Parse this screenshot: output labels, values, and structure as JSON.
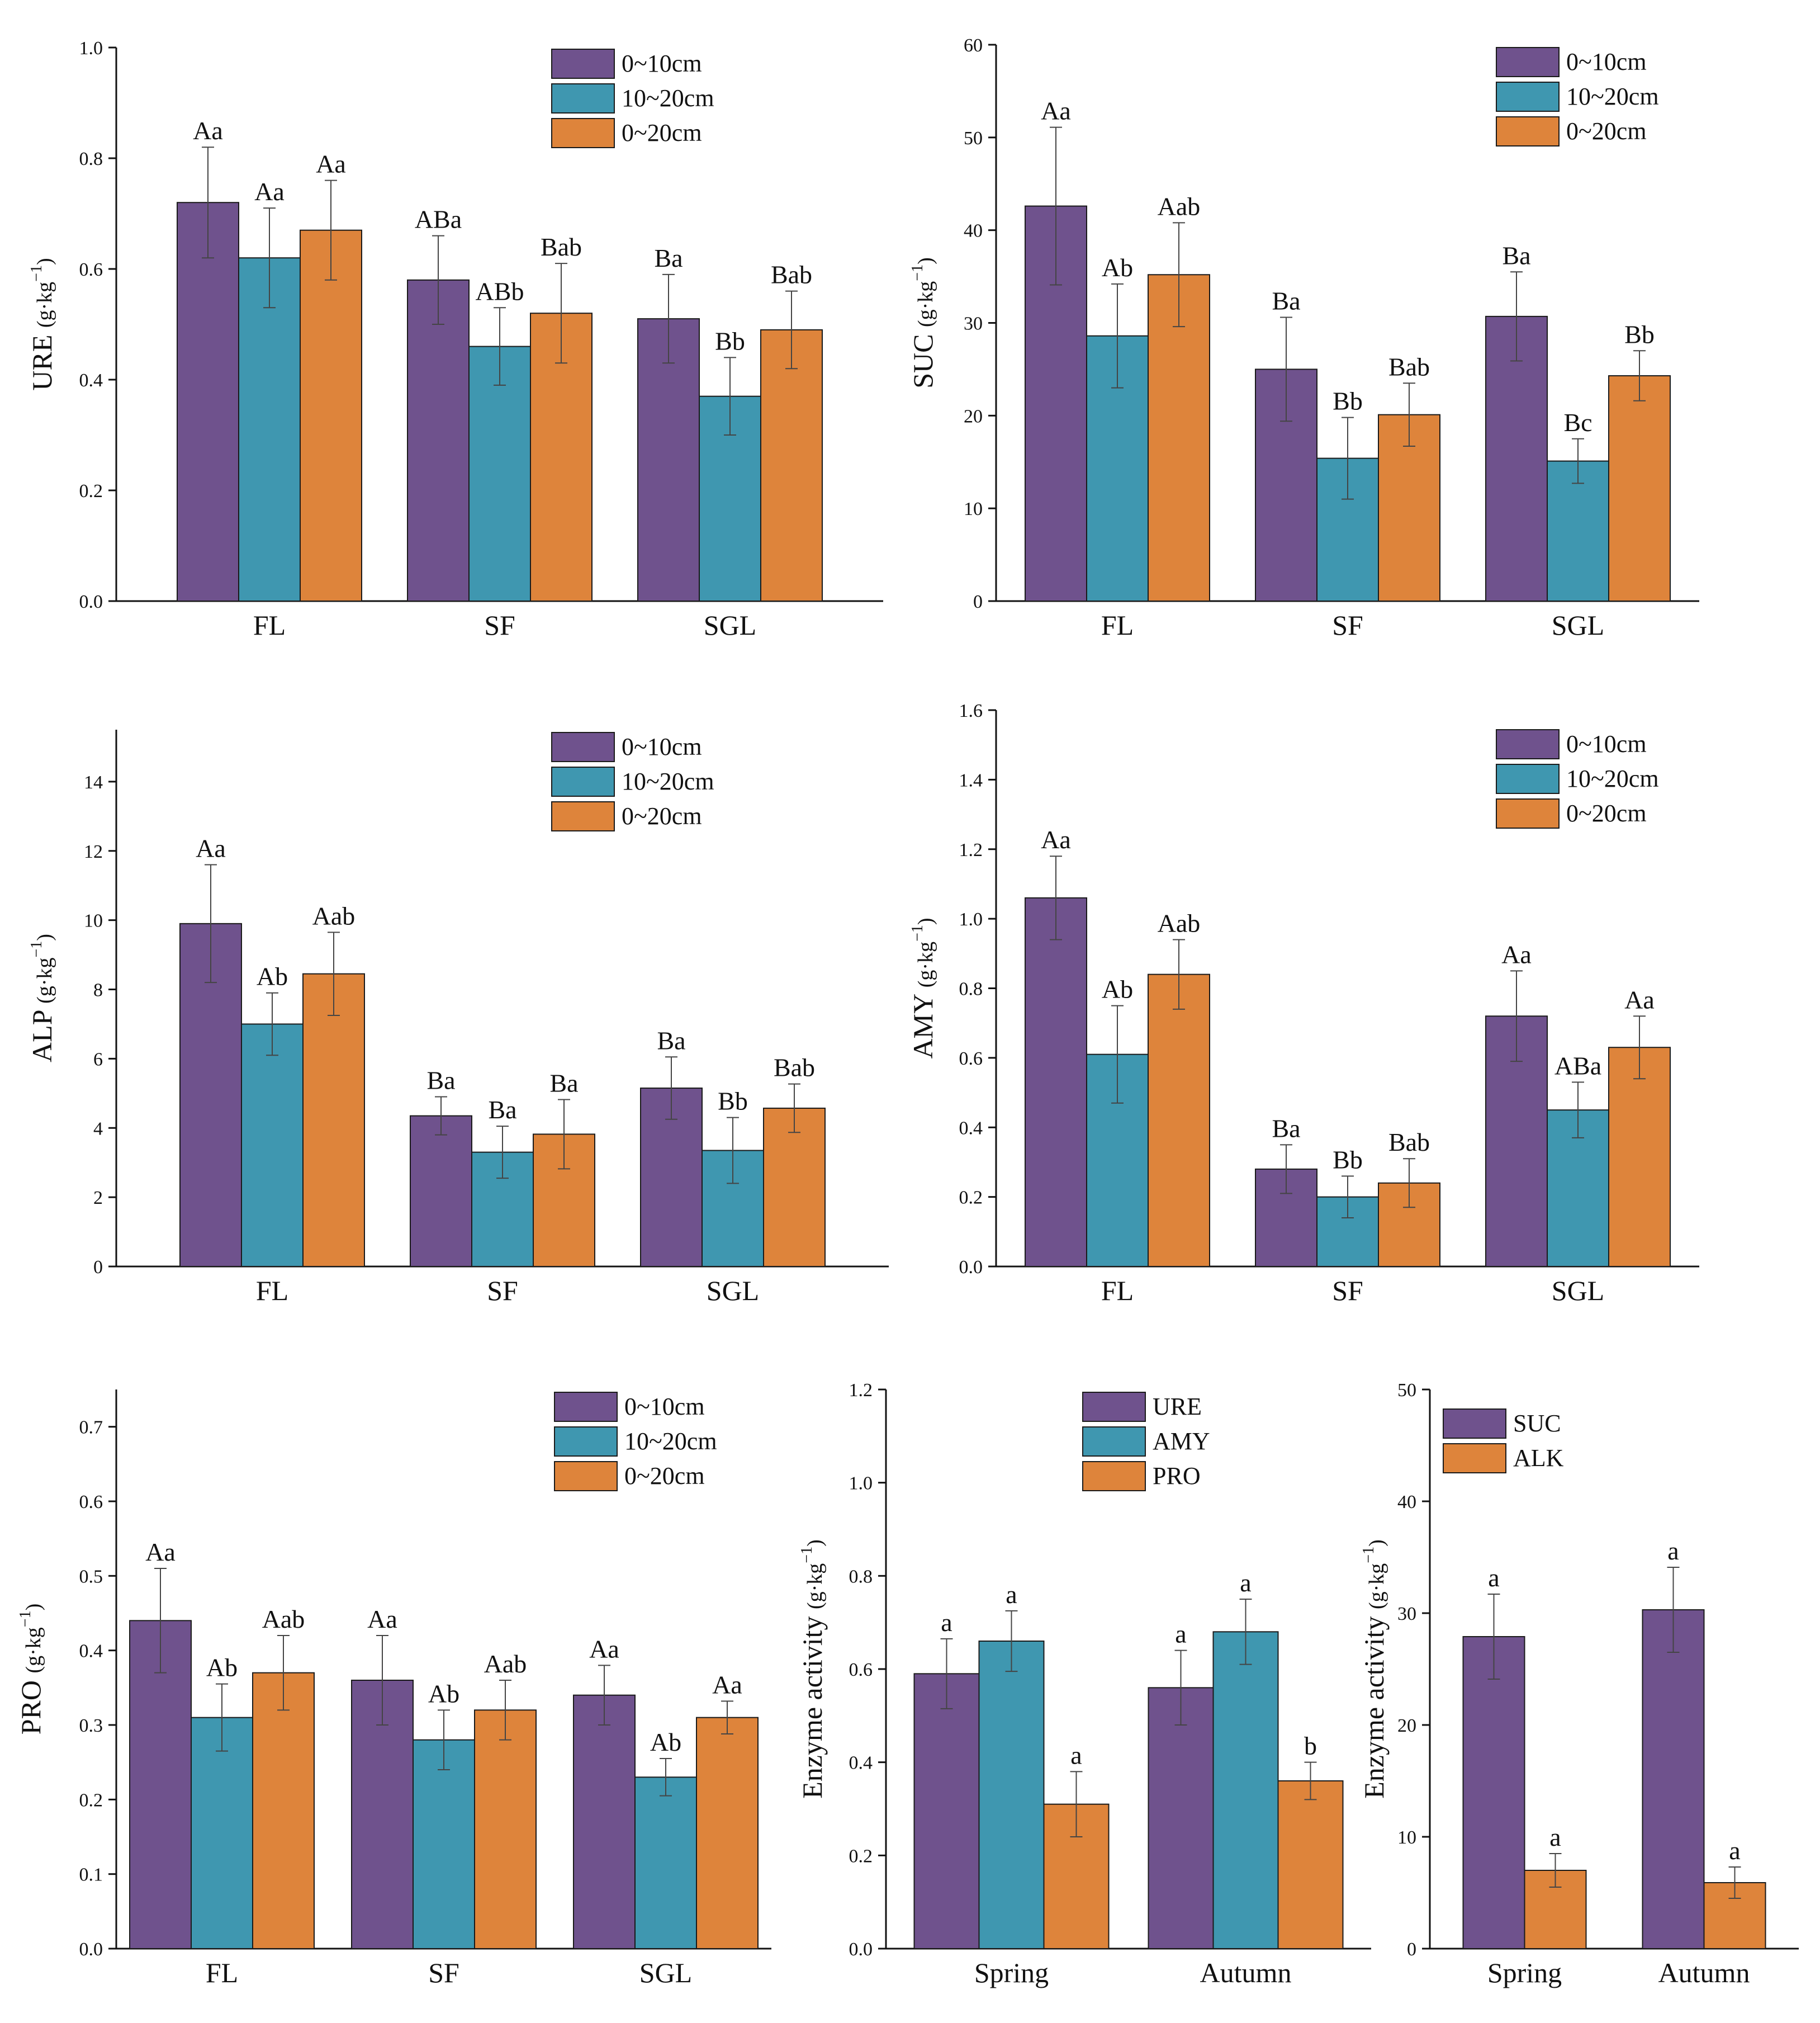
{
  "colors": {
    "purple": "#6f528d",
    "teal": "#3f97b0",
    "orange": "#de843b",
    "axis": "#111111",
    "error": "#444444"
  },
  "chart_data": [
    {
      "id": "ure",
      "type": "bar",
      "ylabel": "URE",
      "unit": "(g·kg",
      "unit_exp": "−1",
      "unit_close": ")",
      "categories": [
        "FL",
        "SF",
        "SGL"
      ],
      "ylim": [
        0,
        1.0
      ],
      "yticks": [
        "0.0",
        "0.2",
        "0.4",
        "0.6",
        "0.8",
        "1.0"
      ],
      "ytick_values": [
        0,
        0.2,
        0.4,
        0.6,
        0.8,
        1.0
      ],
      "legend_position": "top-right",
      "series": [
        {
          "name": "0~10cm",
          "color": "#6f528d",
          "values": [
            0.72,
            0.58,
            0.51
          ],
          "errors": [
            0.1,
            0.08,
            0.08
          ],
          "labels": [
            "Aa",
            "ABa",
            "Ba"
          ]
        },
        {
          "name": "10~20cm",
          "color": "#3f97b0",
          "values": [
            0.62,
            0.46,
            0.37
          ],
          "errors": [
            0.09,
            0.07,
            0.07
          ],
          "labels": [
            "Aa",
            "ABb",
            "Bb"
          ]
        },
        {
          "name": "0~20cm",
          "color": "#de843b",
          "values": [
            0.67,
            0.52,
            0.49
          ],
          "errors": [
            0.09,
            0.09,
            0.07
          ],
          "labels": [
            "Aa",
            "Bab",
            "Bab"
          ]
        }
      ]
    },
    {
      "id": "suc",
      "type": "bar",
      "ylabel": "SUC",
      "unit": "(g·kg",
      "unit_exp": "−1",
      "unit_close": ")",
      "categories": [
        "FL",
        "SF",
        "SGL"
      ],
      "ylim": [
        0,
        60
      ],
      "yticks": [
        "0",
        "10",
        "20",
        "30",
        "40",
        "50",
        "60"
      ],
      "ytick_values": [
        0,
        10,
        20,
        30,
        40,
        50,
        60
      ],
      "legend_position": "top-right",
      "series": [
        {
          "name": "0~10cm",
          "color": "#6f528d",
          "values": [
            42.6,
            25.0,
            30.7
          ],
          "errors": [
            8.5,
            5.6,
            4.8
          ],
          "labels": [
            "Aa",
            "Ba",
            "Ba"
          ]
        },
        {
          "name": "10~20cm",
          "color": "#3f97b0",
          "values": [
            28.6,
            15.4,
            15.1
          ],
          "errors": [
            5.6,
            4.4,
            2.4
          ],
          "labels": [
            "Ab",
            "Bb",
            "Bc"
          ]
        },
        {
          "name": "0~20cm",
          "color": "#de843b",
          "values": [
            35.2,
            20.1,
            24.3
          ],
          "errors": [
            5.6,
            3.4,
            2.7
          ],
          "labels": [
            "Aab",
            "Bab",
            "Bb"
          ]
        }
      ]
    },
    {
      "id": "alp",
      "type": "bar",
      "ylabel": "ALP",
      "unit": "(g·kg",
      "unit_exp": "−1",
      "unit_close": ")",
      "categories": [
        "FL",
        "SF",
        "SGL"
      ],
      "ylim": [
        0,
        15.5
      ],
      "yticks": [
        "0",
        "2",
        "4",
        "6",
        "8",
        "10",
        "12",
        "14"
      ],
      "ytick_values": [
        0,
        2,
        4,
        6,
        8,
        10,
        12,
        14
      ],
      "legend_position": "top-right",
      "series": [
        {
          "name": "0~10cm",
          "color": "#6f528d",
          "values": [
            9.9,
            4.35,
            5.15
          ],
          "errors": [
            1.7,
            0.55,
            0.9
          ],
          "labels": [
            "Aa",
            "Ba",
            "Ba"
          ]
        },
        {
          "name": "10~20cm",
          "color": "#3f97b0",
          "values": [
            7.0,
            3.3,
            3.35
          ],
          "errors": [
            0.9,
            0.75,
            0.95
          ],
          "labels": [
            "Ab",
            "Ba",
            "Bb"
          ]
        },
        {
          "name": "0~20cm",
          "color": "#de843b",
          "values": [
            8.45,
            3.82,
            4.57
          ],
          "errors": [
            1.2,
            1.0,
            0.7
          ],
          "labels": [
            "Aab",
            "Ba",
            "Bab"
          ]
        }
      ]
    },
    {
      "id": "amy",
      "type": "bar",
      "ylabel": "AMY",
      "unit": "(g·kg",
      "unit_exp": "−1",
      "unit_close": ")",
      "categories": [
        "FL",
        "SF",
        "SGL"
      ],
      "ylim": [
        0,
        1.6
      ],
      "yticks": [
        "0.0",
        "0.2",
        "0.4",
        "0.6",
        "0.8",
        "1.0",
        "1.2",
        "1.4",
        "1.6"
      ],
      "ytick_values": [
        0,
        0.2,
        0.4,
        0.6,
        0.8,
        1.0,
        1.2,
        1.4,
        1.6
      ],
      "legend_position": "top-right",
      "series": [
        {
          "name": "0~10cm",
          "color": "#6f528d",
          "values": [
            1.06,
            0.28,
            0.72
          ],
          "errors": [
            0.12,
            0.07,
            0.13
          ],
          "labels": [
            "Aa",
            "Ba",
            "Aa"
          ]
        },
        {
          "name": "10~20cm",
          "color": "#3f97b0",
          "values": [
            0.61,
            0.2,
            0.45
          ],
          "errors": [
            0.14,
            0.06,
            0.08
          ],
          "labels": [
            "Ab",
            "Bb",
            "ABa"
          ]
        },
        {
          "name": "0~20cm",
          "color": "#de843b",
          "values": [
            0.84,
            0.24,
            0.63
          ],
          "errors": [
            0.1,
            0.07,
            0.09
          ],
          "labels": [
            "Aab",
            "Bab",
            "Aa"
          ]
        }
      ]
    },
    {
      "id": "pro",
      "type": "bar",
      "ylabel": "PRO",
      "unit": "(g·kg",
      "unit_exp": "−1",
      "unit_close": ")",
      "categories": [
        "FL",
        "SF",
        "SGL"
      ],
      "ylim": [
        0,
        0.75
      ],
      "yticks": [
        "0.0",
        "0.1",
        "0.2",
        "0.3",
        "0.4",
        "0.5",
        "0.6",
        "0.7"
      ],
      "ytick_values": [
        0,
        0.1,
        0.2,
        0.3,
        0.4,
        0.5,
        0.6,
        0.7
      ],
      "legend_position": "top-right",
      "series": [
        {
          "name": "0~10cm",
          "color": "#6f528d",
          "values": [
            0.44,
            0.36,
            0.34
          ],
          "errors": [
            0.07,
            0.06,
            0.04
          ],
          "labels": [
            "Aa",
            "Aa",
            "Aa"
          ]
        },
        {
          "name": "10~20cm",
          "color": "#3f97b0",
          "values": [
            0.31,
            0.28,
            0.23
          ],
          "errors": [
            0.045,
            0.04,
            0.025
          ],
          "labels": [
            "Ab",
            "Ab",
            "Ab"
          ]
        },
        {
          "name": "0~20cm",
          "color": "#de843b",
          "values": [
            0.37,
            0.32,
            0.31
          ],
          "errors": [
            0.05,
            0.04,
            0.022
          ],
          "labels": [
            "Aab",
            "Aab",
            "Aa"
          ]
        }
      ]
    },
    {
      "id": "season-ure-amy-pro",
      "type": "bar",
      "ylabel": "Enzyme activity",
      "unit": "(g·kg",
      "unit_exp": "−1",
      "unit_close": ")",
      "categories": [
        "Spring",
        "Autumn"
      ],
      "ylim": [
        0,
        1.2
      ],
      "yticks": [
        "0.0",
        "0.2",
        "0.4",
        "0.6",
        "0.8",
        "1.0",
        "1.2"
      ],
      "ytick_values": [
        0,
        0.2,
        0.4,
        0.6,
        0.8,
        1.0,
        1.2
      ],
      "legend_position": "top-right",
      "series": [
        {
          "name": "URE",
          "color": "#6f528d",
          "values": [
            0.59,
            0.56
          ],
          "errors": [
            0.075,
            0.08
          ],
          "labels": [
            "a",
            "a"
          ]
        },
        {
          "name": "AMY",
          "color": "#3f97b0",
          "values": [
            0.66,
            0.68
          ],
          "errors": [
            0.065,
            0.07
          ],
          "labels": [
            "a",
            "a"
          ]
        },
        {
          "name": "PRO",
          "color": "#de843b",
          "values": [
            0.31,
            0.36
          ],
          "errors": [
            0.07,
            0.04
          ],
          "labels": [
            "a",
            "b"
          ]
        }
      ]
    },
    {
      "id": "season-suc-alk",
      "type": "bar",
      "ylabel": "Enzyme activity",
      "unit": "(g·kg",
      "unit_exp": "−1",
      "unit_close": ")",
      "categories": [
        "Spring",
        "Autumn"
      ],
      "ylim": [
        0,
        50
      ],
      "yticks": [
        "0",
        "10",
        "20",
        "30",
        "40",
        "50"
      ],
      "ytick_values": [
        0,
        10,
        20,
        30,
        40,
        50
      ],
      "legend_position": "top-right",
      "series": [
        {
          "name": "SUC",
          "color": "#6f528d",
          "values": [
            27.9,
            30.3
          ],
          "errors": [
            3.8,
            3.8
          ],
          "labels": [
            "a",
            "a"
          ]
        },
        {
          "name": "ALK",
          "color": "#de843b",
          "values": [
            7.0,
            5.9
          ],
          "errors": [
            1.5,
            1.4
          ],
          "labels": [
            "a",
            "a"
          ]
        }
      ]
    }
  ]
}
